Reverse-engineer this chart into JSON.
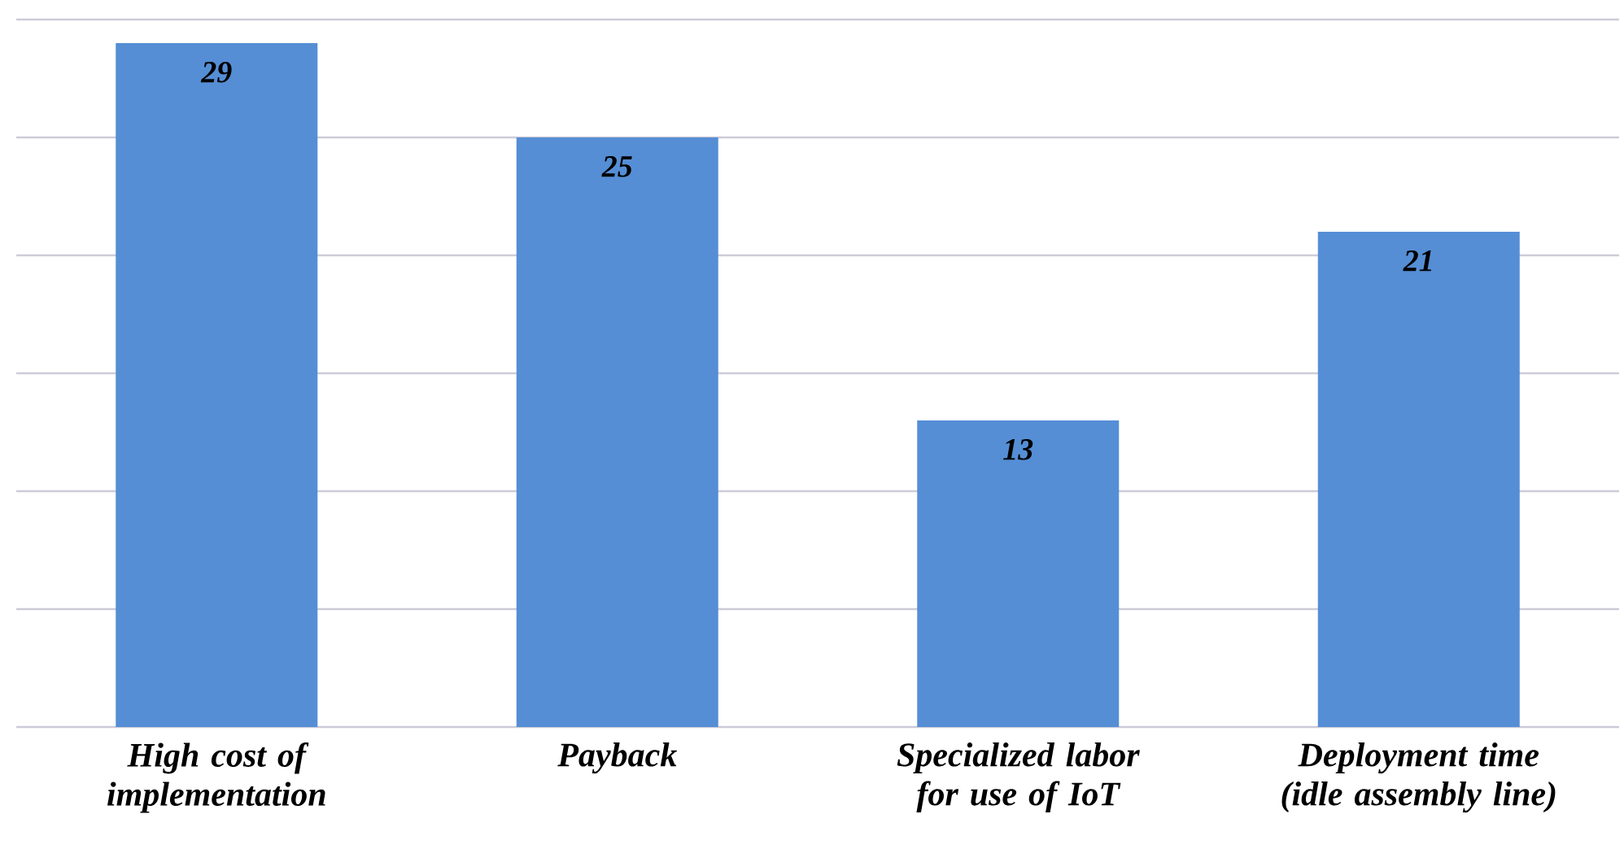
{
  "chart_data": {
    "type": "bar",
    "categories": [
      "High cost of implementation",
      "Payback",
      "Specialized labor for use of IoT",
      "Deployment time (idle assembly line)"
    ],
    "values": [
      29,
      25,
      13,
      21
    ],
    "color": "#558ed5",
    "ylim": [
      0,
      30
    ],
    "yticks": [
      {
        "value": 0,
        "label": null
      },
      {
        "value": 5,
        "label": null
      },
      {
        "value": 10,
        "label": null
      },
      {
        "value": 15,
        "label": null
      },
      {
        "value": 20,
        "label": null
      },
      {
        "value": 25,
        "label": null
      },
      {
        "value": 30,
        "label": null
      }
    ],
    "tick_labels": "x",
    "grid": "y",
    "data_labels": true
  }
}
